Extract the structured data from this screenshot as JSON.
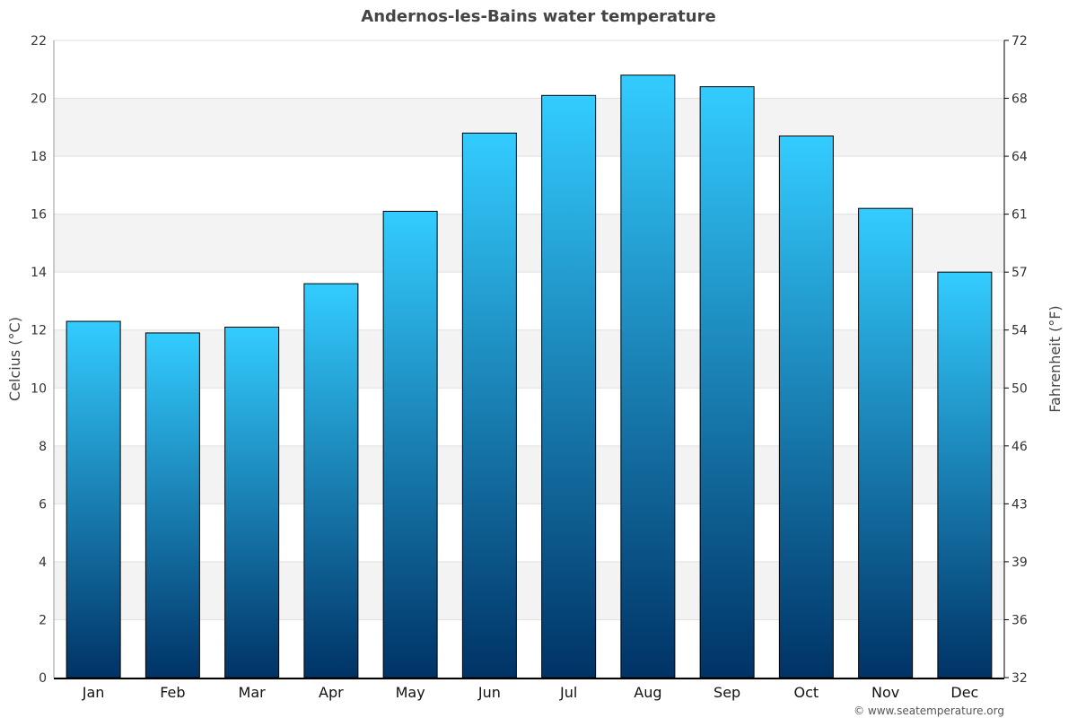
{
  "chart_data": {
    "type": "bar",
    "title": "Andernos-les-Bains water temperature",
    "categories": [
      "Jan",
      "Feb",
      "Mar",
      "Apr",
      "May",
      "Jun",
      "Jul",
      "Aug",
      "Sep",
      "Oct",
      "Nov",
      "Dec"
    ],
    "values": [
      12.3,
      11.9,
      12.1,
      13.6,
      16.1,
      18.8,
      20.1,
      20.8,
      20.4,
      18.7,
      16.2,
      14.0
    ],
    "ylabel": "Celcius (°C)",
    "y2label": "Fahrenheit (°F)",
    "ylim": [
      0,
      22
    ],
    "yticks": [
      "0",
      "2",
      "4",
      "6",
      "8",
      "10",
      "12",
      "14",
      "16",
      "18",
      "20",
      "22"
    ],
    "y2ticks": [
      "32",
      "36",
      "39",
      "43",
      "46",
      "50",
      "54",
      "57",
      "61",
      "64",
      "68",
      "72"
    ],
    "grid": true,
    "bar_color_top": "#33ccff",
    "bar_color_bottom": "#003366"
  },
  "credit": "© www.seatemperature.org"
}
